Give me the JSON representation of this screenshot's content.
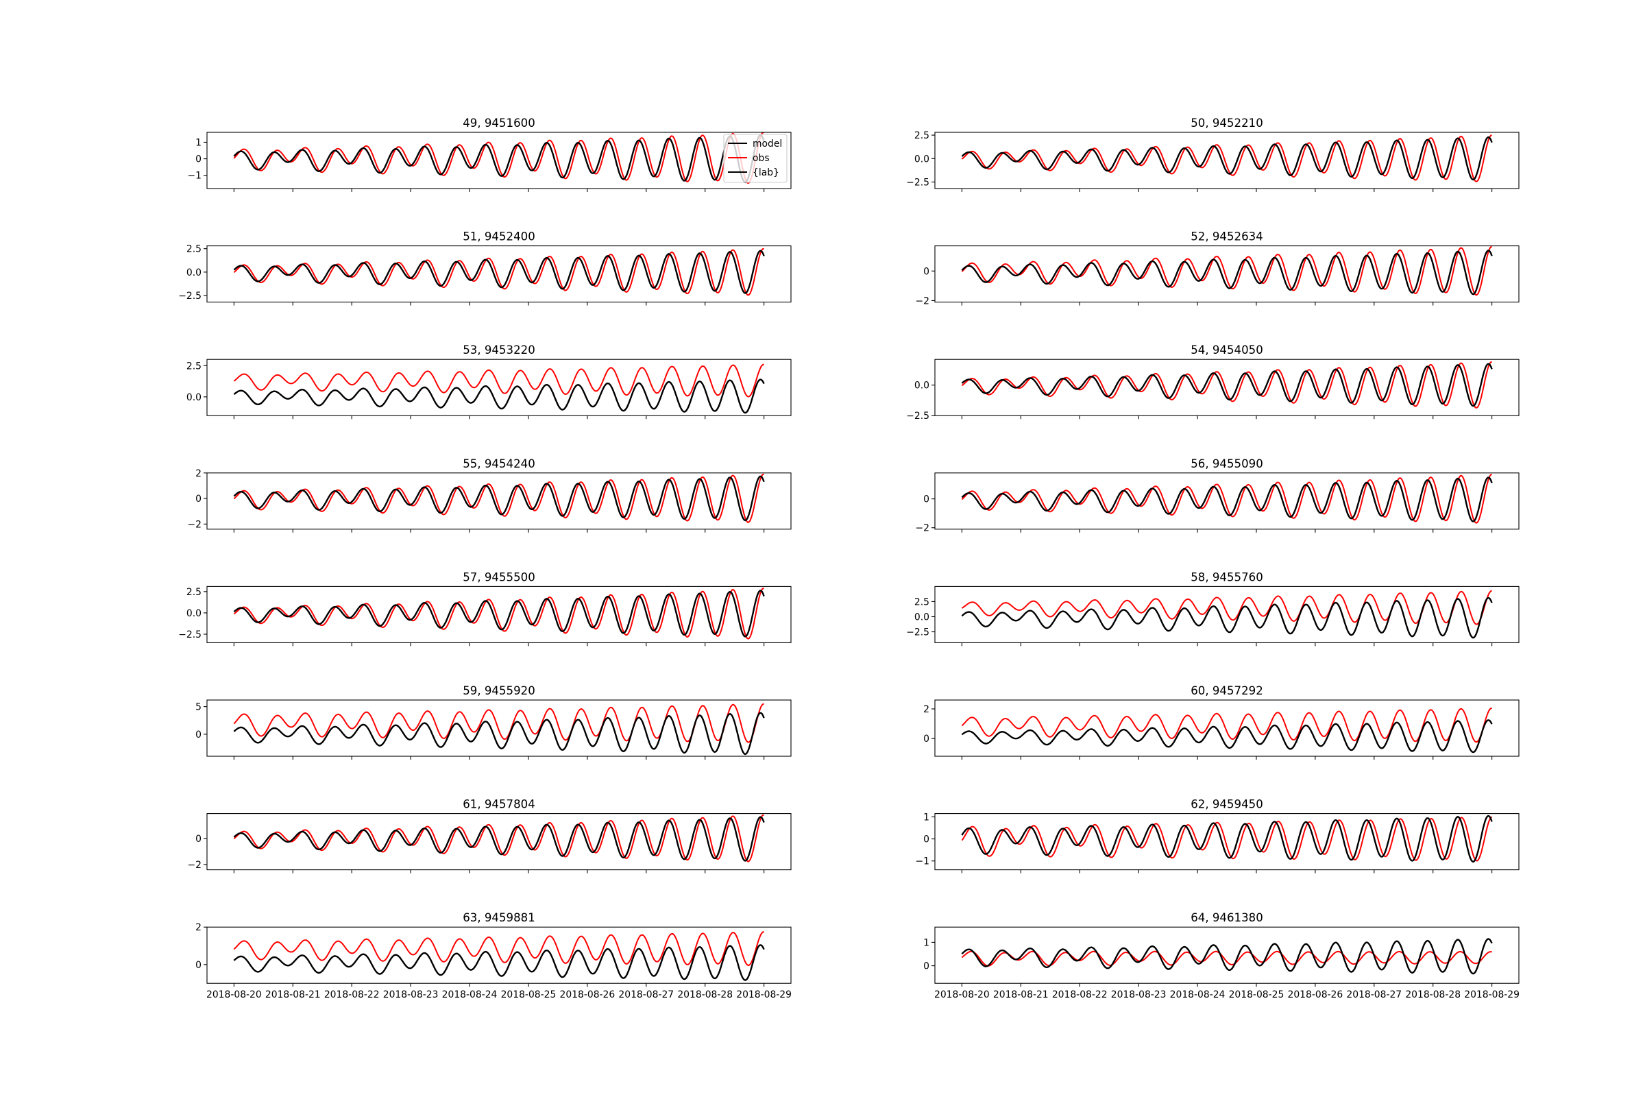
{
  "chart_data": {
    "type": "line",
    "grid": false,
    "x_tick_labels": [
      "2018-08-20",
      "2018-08-21",
      "2018-08-22",
      "2018-08-23",
      "2018-08-24",
      "2018-08-25",
      "2018-08-26",
      "2018-08-27",
      "2018-08-28",
      "2018-08-29"
    ],
    "xlim": [
      "2018-08-19T13:00",
      "2018-08-29T11:00"
    ],
    "series_styles": {
      "model": {
        "color": "#000000"
      },
      "obs": {
        "color": "#ff0000"
      },
      "{lab}": {
        "color": "#000000"
      }
    },
    "legend": {
      "panel": 0,
      "placement": "upper right",
      "entries": [
        "model",
        "obs",
        "{lab}"
      ]
    },
    "panels": [
      {
        "title": "49, 9451600",
        "yticks": [
          "1",
          "0",
          "−1"
        ],
        "ytick_values": [
          1,
          0,
          -1
        ],
        "ylim": [
          -1.8,
          1.6
        ],
        "model": {
          "amp_start": 0.6,
          "amp_end": 1.45,
          "mean": 0.0,
          "lag_h": 0.0
        },
        "obs": {
          "amp_start": 0.7,
          "amp_end": 1.55,
          "mean": 0.05,
          "lag_h": 1.2
        }
      },
      {
        "title": "50, 9452210",
        "yticks": [
          "2.5",
          "0.0",
          "−2.5"
        ],
        "ytick_values": [
          2.5,
          0,
          -2.5
        ],
        "ylim": [
          -3.2,
          2.8
        ],
        "model": {
          "amp_start": 0.9,
          "amp_end": 2.3,
          "mean": 0.0,
          "lag_h": 0.0
        },
        "obs": {
          "amp_start": 1.0,
          "amp_end": 2.5,
          "mean": 0.0,
          "lag_h": 1.3
        }
      },
      {
        "title": "51, 9452400",
        "yticks": [
          "2.5",
          "0.0",
          "−2.5"
        ],
        "ytick_values": [
          2.5,
          0,
          -2.5
        ],
        "ylim": [
          -3.2,
          2.8
        ],
        "model": {
          "amp_start": 0.9,
          "amp_end": 2.3,
          "mean": 0.0,
          "lag_h": 0.0
        },
        "obs": {
          "amp_start": 1.0,
          "amp_end": 2.5,
          "mean": 0.0,
          "lag_h": 1.2
        }
      },
      {
        "title": "52, 9452634",
        "yticks": [
          "0",
          "−2"
        ],
        "ytick_values": [
          0,
          -2
        ],
        "ylim": [
          -2.1,
          1.7
        ],
        "model": {
          "amp_start": 0.6,
          "amp_end": 1.5,
          "mean": -0.1,
          "lag_h": 0.0
        },
        "obs": {
          "amp_start": 0.7,
          "amp_end": 1.65,
          "mean": 0.0,
          "lag_h": 1.3
        }
      },
      {
        "title": "53, 9453220",
        "yticks": [
          "2.5",
          "0.0"
        ],
        "ytick_values": [
          2.5,
          0
        ],
        "ylim": [
          -1.5,
          3.0
        ],
        "model": {
          "amp_start": 0.6,
          "amp_end": 1.35,
          "mean": 0.05,
          "lag_h": 0.0
        },
        "obs": {
          "amp_start": 0.7,
          "amp_end": 1.3,
          "mean": 1.3,
          "lag_h": 1.3
        }
      },
      {
        "title": "54, 9454050",
        "yticks": [
          "0.0",
          "−2.5"
        ],
        "ytick_values": [
          0,
          -2.5
        ],
        "ylim": [
          -2.5,
          2.1
        ],
        "model": {
          "amp_start": 0.6,
          "amp_end": 1.75,
          "mean": 0.0,
          "lag_h": 0.0
        },
        "obs": {
          "amp_start": 0.7,
          "amp_end": 1.9,
          "mean": 0.0,
          "lag_h": 1.3
        }
      },
      {
        "title": "55, 9454240",
        "yticks": [
          "2",
          "0",
          "−2"
        ],
        "ytick_values": [
          2,
          0,
          -2
        ],
        "ylim": [
          -2.4,
          2.0
        ],
        "model": {
          "amp_start": 0.7,
          "amp_end": 1.75,
          "mean": 0.0,
          "lag_h": 0.0
        },
        "obs": {
          "amp_start": 0.8,
          "amp_end": 1.9,
          "mean": 0.0,
          "lag_h": 1.2
        }
      },
      {
        "title": "56, 9455090",
        "yticks": [
          "0",
          "−2"
        ],
        "ytick_values": [
          0,
          -2
        ],
        "ylim": [
          -2.1,
          1.8
        ],
        "model": {
          "amp_start": 0.6,
          "amp_end": 1.55,
          "mean": -0.05,
          "lag_h": 0.0
        },
        "obs": {
          "amp_start": 0.7,
          "amp_end": 1.7,
          "mean": 0.0,
          "lag_h": 1.3
        }
      },
      {
        "title": "57, 9455500",
        "yticks": [
          "2.5",
          "0.0",
          "−2.5"
        ],
        "ytick_values": [
          2.5,
          0,
          -2.5
        ],
        "ylim": [
          -3.5,
          3.1
        ],
        "model": {
          "amp_start": 0.9,
          "amp_end": 2.75,
          "mean": -0.1,
          "lag_h": 0.0
        },
        "obs": {
          "amp_start": 1.0,
          "amp_end": 3.0,
          "mean": -0.1,
          "lag_h": 1.2
        }
      },
      {
        "title": "58, 9455760",
        "yticks": [
          "2.5",
          "0.0",
          "−2.5"
        ],
        "ytick_values": [
          2.5,
          0,
          -2.5
        ],
        "ylim": [
          -4.3,
          5.0
        ],
        "model": {
          "amp_start": 1.3,
          "amp_end": 3.35,
          "mean": -0.2,
          "lag_h": 0.0
        },
        "obs": {
          "amp_start": 1.2,
          "amp_end": 2.8,
          "mean": 1.5,
          "lag_h": 1.4
        }
      },
      {
        "title": "59, 9455920",
        "yticks": [
          "5",
          "0"
        ],
        "ytick_values": [
          5,
          0
        ],
        "ylim": [
          -4.0,
          6.2
        ],
        "model": {
          "amp_start": 1.5,
          "amp_end": 3.8,
          "mean": 0.1,
          "lag_h": 0.0
        },
        "obs": {
          "amp_start": 2.2,
          "amp_end": 3.5,
          "mean": 2.0,
          "lag_h": 1.3
        }
      },
      {
        "title": "60, 9457292",
        "yticks": [
          "2",
          "0"
        ],
        "ytick_values": [
          2,
          0
        ],
        "ylim": [
          -1.2,
          2.6
        ],
        "model": {
          "amp_start": 0.45,
          "amp_end": 1.1,
          "mean": 0.15,
          "lag_h": 0.0
        },
        "obs": {
          "amp_start": 0.7,
          "amp_end": 1.15,
          "mean": 0.9,
          "lag_h": 1.3
        }
      },
      {
        "title": "61, 9457804",
        "yticks": [
          "0",
          "−2"
        ],
        "ytick_values": [
          0,
          -2
        ],
        "ylim": [
          -2.4,
          1.9
        ],
        "model": {
          "amp_start": 0.6,
          "amp_end": 1.7,
          "mean": -0.05,
          "lag_h": 0.0
        },
        "obs": {
          "amp_start": 0.7,
          "amp_end": 1.8,
          "mean": 0.0,
          "lag_h": 1.2
        }
      },
      {
        "title": "62, 9459450",
        "yticks": [
          "1",
          "0",
          "−1"
        ],
        "ytick_values": [
          1,
          0,
          -1
        ],
        "ylim": [
          -1.4,
          1.15
        ],
        "model": {
          "amp_start": 0.65,
          "amp_end": 1.05,
          "mean": 0.0,
          "lag_h": 0.0
        },
        "obs": {
          "amp_start": 0.75,
          "amp_end": 1.0,
          "mean": 0.0,
          "lag_h": 1.5
        }
      },
      {
        "title": "63, 9459881",
        "yticks": [
          "2",
          "0"
        ],
        "ytick_values": [
          2,
          0
        ],
        "ylim": [
          -1.0,
          2.0
        ],
        "model": {
          "amp_start": 0.45,
          "amp_end": 0.95,
          "mean": 0.1,
          "lag_h": 0.0
        },
        "obs": {
          "amp_start": 0.55,
          "amp_end": 0.9,
          "mean": 0.85,
          "lag_h": 1.3
        }
      },
      {
        "title": "64, 9461380",
        "yticks": [
          "1",
          "0"
        ],
        "ytick_values": [
          1,
          0
        ],
        "ylim": [
          -0.75,
          1.65
        ],
        "model": {
          "amp_start": 0.4,
          "amp_end": 0.75,
          "mean": 0.4,
          "lag_h": 0.0
        },
        "obs": {
          "amp_start": 0.35,
          "amp_end": 0.25,
          "mean": 0.35,
          "lag_h": 1.0
        }
      }
    ]
  }
}
